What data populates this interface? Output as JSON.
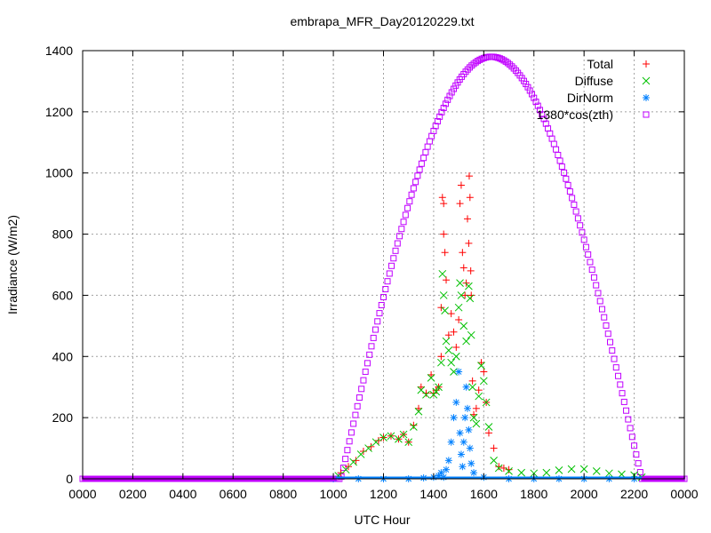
{
  "chart_data": {
    "type": "scatter",
    "title": "embrapa_MFR_Day20120229.txt",
    "xlabel": "UTC Hour",
    "ylabel": "Irradiance (W/m2)",
    "xlim": [
      0,
      2400
    ],
    "ylim": [
      0,
      1400
    ],
    "x_ticks": [
      "0000",
      "0200",
      "0400",
      "0600",
      "0800",
      "1000",
      "1200",
      "1400",
      "1600",
      "1800",
      "2000",
      "2200",
      "0000"
    ],
    "y_ticks": [
      "0",
      "200",
      "400",
      "600",
      "800",
      "1000",
      "1200",
      "1400"
    ],
    "grid": true,
    "legend_position": "top-right",
    "series": [
      {
        "name": "Total",
        "marker": "plus",
        "color": "#ff0000",
        "points": [
          [
            1030,
            20
          ],
          [
            1060,
            40
          ],
          [
            1090,
            60
          ],
          [
            1120,
            90
          ],
          [
            1150,
            105
          ],
          [
            1180,
            125
          ],
          [
            1200,
            135
          ],
          [
            1230,
            140
          ],
          [
            1260,
            130
          ],
          [
            1280,
            145
          ],
          [
            1300,
            120
          ],
          [
            1320,
            175
          ],
          [
            1340,
            230
          ],
          [
            1350,
            300
          ],
          [
            1370,
            280
          ],
          [
            1390,
            340
          ],
          [
            1400,
            280
          ],
          [
            1410,
            290
          ],
          [
            1420,
            300
          ],
          [
            1430,
            400
          ],
          [
            1430,
            560
          ],
          [
            1435,
            920
          ],
          [
            1440,
            900
          ],
          [
            1440,
            800
          ],
          [
            1445,
            740
          ],
          [
            1450,
            650
          ],
          [
            1460,
            470
          ],
          [
            1470,
            540
          ],
          [
            1480,
            480
          ],
          [
            1490,
            430
          ],
          [
            1500,
            520
          ],
          [
            1505,
            900
          ],
          [
            1510,
            960
          ],
          [
            1515,
            740
          ],
          [
            1520,
            690
          ],
          [
            1525,
            600
          ],
          [
            1530,
            640
          ],
          [
            1535,
            850
          ],
          [
            1540,
            770
          ],
          [
            1542,
            990
          ],
          [
            1545,
            920
          ],
          [
            1548,
            680
          ],
          [
            1550,
            600
          ],
          [
            1555,
            320
          ],
          [
            1560,
            210
          ],
          [
            1570,
            230
          ],
          [
            1580,
            290
          ],
          [
            1590,
            380
          ],
          [
            1600,
            350
          ],
          [
            1610,
            250
          ],
          [
            1620,
            150
          ],
          [
            1640,
            100
          ],
          [
            1660,
            40
          ],
          [
            1680,
            35
          ],
          [
            1700,
            30
          ]
        ]
      },
      {
        "name": "Diffuse",
        "marker": "cross",
        "color": "#00c000",
        "points": [
          [
            1020,
            10
          ],
          [
            1050,
            30
          ],
          [
            1080,
            55
          ],
          [
            1110,
            80
          ],
          [
            1140,
            100
          ],
          [
            1170,
            120
          ],
          [
            1200,
            135
          ],
          [
            1230,
            140
          ],
          [
            1260,
            130
          ],
          [
            1280,
            145
          ],
          [
            1300,
            120
          ],
          [
            1320,
            170
          ],
          [
            1340,
            220
          ],
          [
            1350,
            290
          ],
          [
            1370,
            275
          ],
          [
            1390,
            330
          ],
          [
            1400,
            275
          ],
          [
            1410,
            285
          ],
          [
            1420,
            300
          ],
          [
            1430,
            380
          ],
          [
            1435,
            670
          ],
          [
            1440,
            600
          ],
          [
            1445,
            550
          ],
          [
            1450,
            450
          ],
          [
            1460,
            420
          ],
          [
            1470,
            380
          ],
          [
            1480,
            350
          ],
          [
            1490,
            400
          ],
          [
            1500,
            560
          ],
          [
            1505,
            640
          ],
          [
            1510,
            600
          ],
          [
            1520,
            500
          ],
          [
            1530,
            450
          ],
          [
            1540,
            630
          ],
          [
            1545,
            590
          ],
          [
            1550,
            470
          ],
          [
            1555,
            300
          ],
          [
            1560,
            200
          ],
          [
            1570,
            180
          ],
          [
            1580,
            270
          ],
          [
            1590,
            370
          ],
          [
            1600,
            320
          ],
          [
            1610,
            250
          ],
          [
            1620,
            170
          ],
          [
            1640,
            60
          ],
          [
            1660,
            35
          ],
          [
            1700,
            25
          ],
          [
            1750,
            20
          ],
          [
            1800,
            18
          ],
          [
            1850,
            20
          ],
          [
            1900,
            28
          ],
          [
            1950,
            32
          ],
          [
            2000,
            32
          ],
          [
            2050,
            25
          ],
          [
            2100,
            18
          ],
          [
            2150,
            15
          ],
          [
            2200,
            12
          ],
          [
            2230,
            5
          ]
        ]
      },
      {
        "name": "DirNorm",
        "marker": "star",
        "color": "#0080ff",
        "points": [
          [
            1000,
            0
          ],
          [
            1100,
            0
          ],
          [
            1200,
            0
          ],
          [
            1300,
            0
          ],
          [
            1360,
            3
          ],
          [
            1400,
            5
          ],
          [
            1420,
            10
          ],
          [
            1430,
            20
          ],
          [
            1440,
            5
          ],
          [
            1450,
            30
          ],
          [
            1460,
            60
          ],
          [
            1470,
            120
          ],
          [
            1480,
            200
          ],
          [
            1490,
            250
          ],
          [
            1500,
            350
          ],
          [
            1505,
            150
          ],
          [
            1510,
            80
          ],
          [
            1515,
            40
          ],
          [
            1520,
            120
          ],
          [
            1525,
            200
          ],
          [
            1530,
            300
          ],
          [
            1535,
            230
          ],
          [
            1540,
            160
          ],
          [
            1545,
            100
          ],
          [
            1550,
            50
          ],
          [
            1560,
            20
          ],
          [
            1600,
            5
          ],
          [
            1700,
            0
          ],
          [
            1800,
            0
          ],
          [
            1900,
            0
          ],
          [
            2000,
            0
          ],
          [
            2100,
            0
          ],
          [
            2200,
            0
          ]
        ]
      },
      {
        "name": "1380*cos(zth)",
        "marker": "box",
        "color": "#c000ff",
        "model": {
          "amplitude": 1380,
          "center_hour": 1630,
          "half_day_hours": 600,
          "sample_step": 8
        }
      }
    ]
  }
}
